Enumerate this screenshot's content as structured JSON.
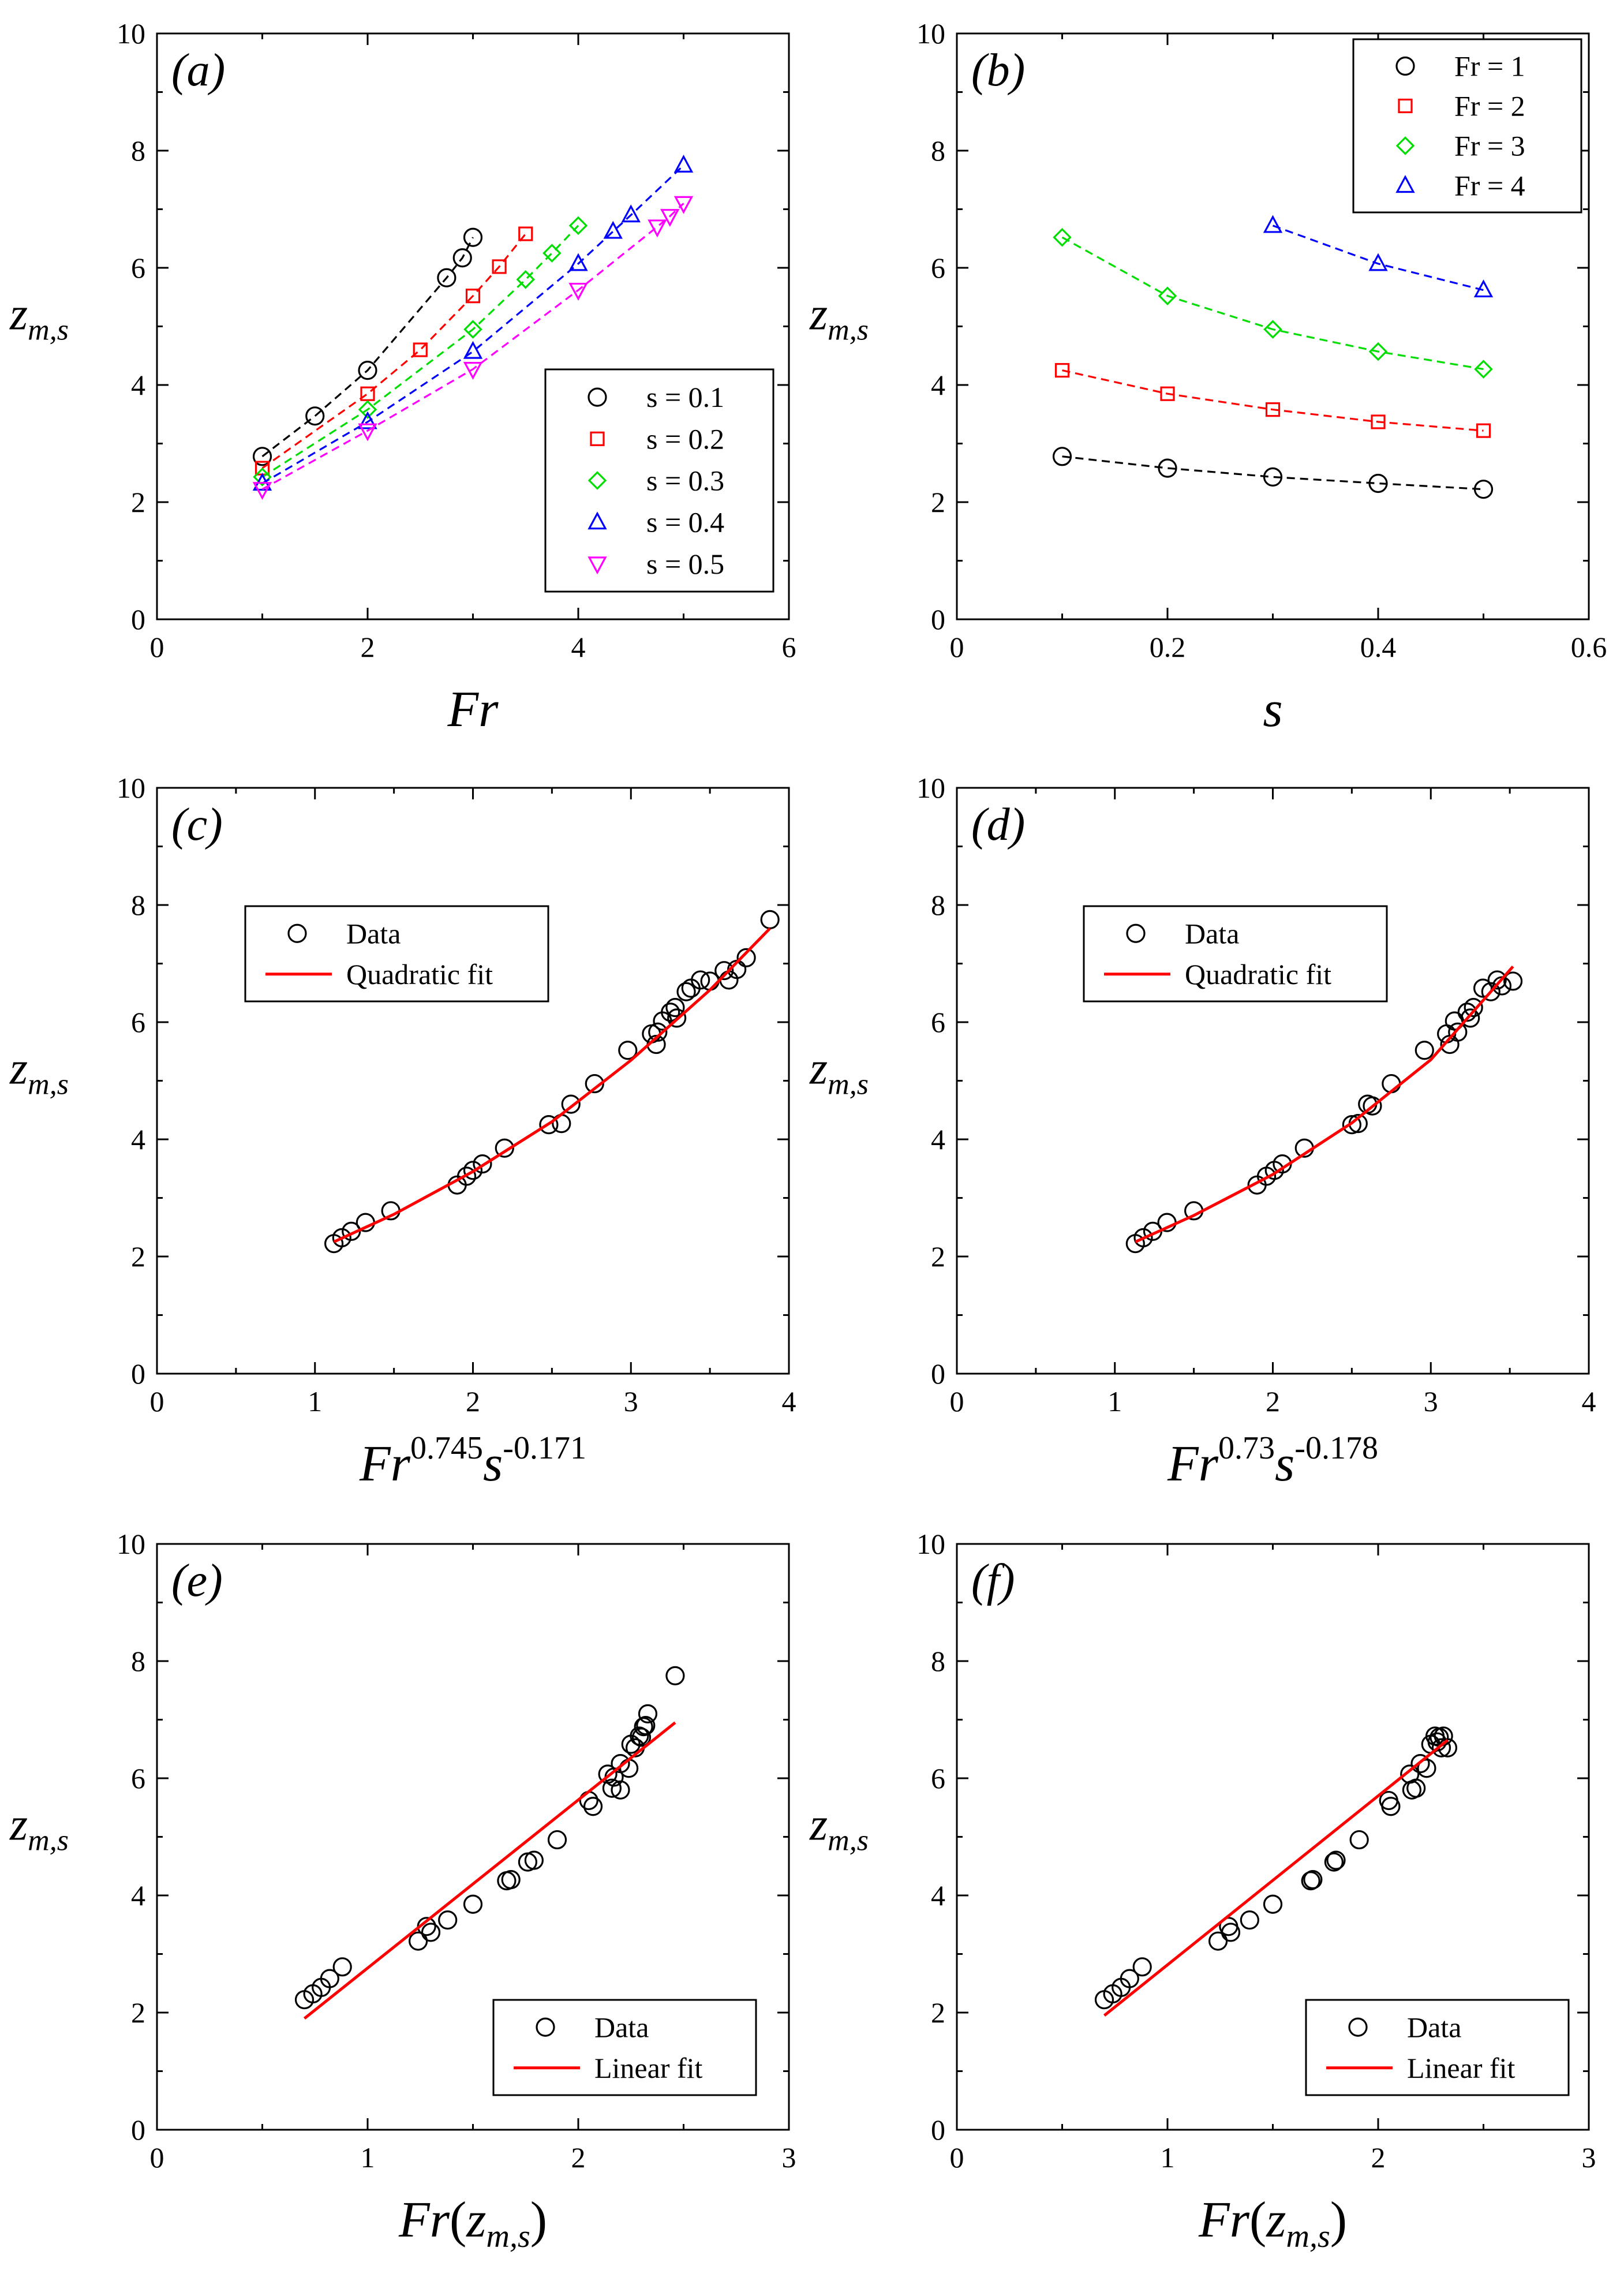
{
  "colors": {
    "black": "#000000",
    "red": "#ff0000",
    "green": "#00dd00",
    "blue": "#0000ff",
    "magenta": "#ff00ff"
  },
  "chart_data": [
    {
      "id": "a",
      "type": "scatter",
      "panel_label": "(a)",
      "xlabel": "Fr",
      "ylabel": {
        "main": "z",
        "sub": "m,s"
      },
      "xlim": [
        0,
        6
      ],
      "ylim": [
        0,
        10
      ],
      "xticks": [
        0,
        2,
        4,
        6
      ],
      "yticks": [
        0,
        2,
        4,
        6,
        8,
        10
      ],
      "legend_position": "bottom-right",
      "series": [
        {
          "name": "s = 0.1",
          "color": "#000000",
          "marker": "circle",
          "line": "dashed",
          "x": [
            1,
            1.5,
            2,
            2.75,
            2.9,
            3
          ],
          "y": [
            2.78,
            3.47,
            4.25,
            5.83,
            6.17,
            6.52
          ]
        },
        {
          "name": "s = 0.2",
          "color": "#ff0000",
          "marker": "square",
          "line": "dashed",
          "x": [
            1,
            2,
            2.5,
            3,
            3.25,
            3.5
          ],
          "y": [
            2.58,
            3.85,
            4.6,
            5.52,
            6.02,
            6.58
          ]
        },
        {
          "name": "s = 0.3",
          "color": "#00dd00",
          "marker": "diamond",
          "line": "dashed",
          "x": [
            1,
            2,
            3,
            3.5,
            3.75,
            4
          ],
          "y": [
            2.43,
            3.58,
            4.95,
            5.8,
            6.25,
            6.72
          ]
        },
        {
          "name": "s = 0.4",
          "color": "#0000ff",
          "marker": "triangle-up",
          "line": "dashed",
          "x": [
            1,
            2,
            3,
            4,
            4.33,
            4.5,
            5
          ],
          "y": [
            2.32,
            3.37,
            4.57,
            6.07,
            6.62,
            6.9,
            7.75
          ]
        },
        {
          "name": "s = 0.5",
          "color": "#ff00ff",
          "marker": "triangle-down",
          "line": "dashed",
          "x": [
            1,
            2,
            3,
            4,
            4.75,
            4.87,
            5
          ],
          "y": [
            2.22,
            3.22,
            4.27,
            5.62,
            6.7,
            6.88,
            7.1
          ]
        }
      ]
    },
    {
      "id": "b",
      "type": "scatter",
      "panel_label": "(b)",
      "xlabel": "s",
      "ylabel": {
        "main": "z",
        "sub": "m,s"
      },
      "xlim": [
        0,
        0.6
      ],
      "ylim": [
        0,
        10
      ],
      "xticks": [
        0,
        0.2,
        0.4,
        0.6
      ],
      "yticks": [
        0,
        2,
        4,
        6,
        8,
        10
      ],
      "legend_position": "top-right",
      "series": [
        {
          "name": "Fr = 1",
          "color": "#000000",
          "marker": "circle",
          "line": "dashed",
          "x": [
            0.1,
            0.2,
            0.3,
            0.4,
            0.5
          ],
          "y": [
            2.78,
            2.58,
            2.43,
            2.32,
            2.22
          ]
        },
        {
          "name": "Fr = 2",
          "color": "#ff0000",
          "marker": "square",
          "line": "dashed",
          "x": [
            0.1,
            0.2,
            0.3,
            0.4,
            0.5
          ],
          "y": [
            4.25,
            3.85,
            3.58,
            3.37,
            3.22
          ]
        },
        {
          "name": "Fr = 3",
          "color": "#00dd00",
          "marker": "diamond",
          "line": "dashed",
          "x": [
            0.1,
            0.2,
            0.3,
            0.4,
            0.5
          ],
          "y": [
            6.52,
            5.52,
            4.95,
            4.57,
            4.27
          ]
        },
        {
          "name": "Fr = 4",
          "color": "#0000ff",
          "marker": "triangle-up",
          "line": "dashed",
          "x": [
            0.3,
            0.4,
            0.5
          ],
          "y": [
            6.72,
            6.07,
            5.62
          ]
        }
      ]
    },
    {
      "id": "c",
      "type": "scatter",
      "panel_label": "(c)",
      "xlabel": "Fr",
      "xlabel_sup1": "0.745",
      "xlabel_mid": "s",
      "xlabel_sup2": "-0.171",
      "ylabel": {
        "main": "z",
        "sub": "m,s"
      },
      "xlim": [
        0,
        4
      ],
      "ylim": [
        0,
        10
      ],
      "xticks": [
        0,
        1,
        2,
        3,
        4
      ],
      "yticks": [
        0,
        2,
        4,
        6,
        8,
        10
      ],
      "legend_position": "top-left",
      "series": [
        {
          "name": "Data",
          "color": "#000000",
          "marker": "circle",
          "line": "none",
          "x": [
            1.12,
            1.17,
            1.23,
            1.32,
            1.48,
            1.9,
            1.96,
            2.0,
            2.06,
            2.2,
            2.48,
            2.56,
            2.62,
            2.77,
            2.98,
            3.13,
            3.16,
            3.17,
            3.2,
            3.25,
            3.28,
            3.29,
            3.35,
            3.38,
            3.44,
            3.5,
            3.59,
            3.62,
            3.67,
            3.73,
            3.88
          ],
          "y": [
            2.22,
            2.32,
            2.43,
            2.58,
            2.78,
            3.22,
            3.37,
            3.47,
            3.58,
            3.85,
            4.25,
            4.27,
            4.6,
            4.95,
            5.52,
            5.8,
            5.62,
            5.83,
            6.02,
            6.17,
            6.25,
            6.07,
            6.52,
            6.58,
            6.72,
            6.7,
            6.88,
            6.72,
            6.9,
            7.1,
            7.75
          ]
        },
        {
          "name": "Quadratic fit",
          "color": "#ff0000",
          "marker": "none",
          "line": "solid",
          "x": [
            1.12,
            1.5,
            2.0,
            2.5,
            3.0,
            3.5,
            3.88
          ],
          "y": [
            2.25,
            2.72,
            3.45,
            4.3,
            5.35,
            6.55,
            7.6
          ]
        }
      ]
    },
    {
      "id": "d",
      "type": "scatter",
      "panel_label": "(d)",
      "xlabel": "Fr",
      "xlabel_sup1": "0.73",
      "xlabel_mid": "s",
      "xlabel_sup2": "-0.178",
      "ylabel": {
        "main": "z",
        "sub": "m,s"
      },
      "xlim": [
        0,
        4
      ],
      "ylim": [
        0,
        10
      ],
      "xticks": [
        0,
        1,
        2,
        3,
        4
      ],
      "yticks": [
        0,
        2,
        4,
        6,
        8,
        10
      ],
      "legend_position": "top-left",
      "series": [
        {
          "name": "Data",
          "color": "#000000",
          "marker": "circle",
          "line": "none",
          "x": [
            1.13,
            1.18,
            1.24,
            1.33,
            1.5,
            1.9,
            1.96,
            2.01,
            2.06,
            2.2,
            2.5,
            2.54,
            2.6,
            2.63,
            2.75,
            2.96,
            3.1,
            3.12,
            3.15,
            3.17,
            3.23,
            3.25,
            3.27,
            3.33,
            3.38,
            3.42,
            3.45,
            3.52
          ],
          "y": [
            2.22,
            2.32,
            2.43,
            2.58,
            2.78,
            3.22,
            3.37,
            3.47,
            3.58,
            3.85,
            4.25,
            4.27,
            4.6,
            4.57,
            4.95,
            5.52,
            5.8,
            5.62,
            6.02,
            5.83,
            6.17,
            6.07,
            6.25,
            6.58,
            6.52,
            6.72,
            6.62,
            6.7
          ]
        },
        {
          "name": "Quadratic fit",
          "color": "#ff0000",
          "marker": "none",
          "line": "solid",
          "x": [
            1.13,
            1.5,
            2.0,
            2.5,
            3.0,
            3.52
          ],
          "y": [
            2.25,
            2.7,
            3.4,
            4.28,
            5.36,
            6.95
          ]
        }
      ]
    },
    {
      "id": "e",
      "type": "scatter",
      "panel_label": "(e)",
      "xlabel": "Fr",
      "xlabel_arg": "z",
      "xlabel_arg_sub": "m,s",
      "ylabel": {
        "main": "z",
        "sub": "m,s"
      },
      "xlim": [
        0,
        3
      ],
      "ylim": [
        0,
        10
      ],
      "xticks": [
        0,
        1,
        2,
        3
      ],
      "yticks": [
        0,
        2,
        4,
        6,
        8,
        10
      ],
      "legend_position": "bottom-right",
      "series": [
        {
          "name": "Data",
          "color": "#000000",
          "marker": "circle",
          "line": "none",
          "x": [
            0.7,
            0.74,
            0.78,
            0.82,
            0.88,
            1.24,
            1.28,
            1.3,
            1.38,
            1.5,
            1.66,
            1.68,
            1.76,
            1.79,
            1.9,
            2.05,
            2.07,
            2.14,
            2.16,
            2.17,
            2.2,
            2.2,
            2.24,
            2.25,
            2.27,
            2.29,
            2.3,
            2.31,
            2.32,
            2.33,
            2.46
          ],
          "y": [
            2.22,
            2.32,
            2.43,
            2.58,
            2.78,
            3.22,
            3.47,
            3.37,
            3.58,
            3.85,
            4.25,
            4.27,
            4.57,
            4.6,
            4.95,
            5.62,
            5.52,
            6.07,
            5.83,
            6.02,
            5.8,
            6.25,
            6.17,
            6.58,
            6.52,
            6.72,
            6.7,
            6.88,
            6.9,
            7.1,
            7.75
          ]
        },
        {
          "name": "Linear fit",
          "color": "#ff0000",
          "marker": "none",
          "line": "solid",
          "x": [
            0.7,
            2.46
          ],
          "y": [
            1.9,
            6.95
          ]
        }
      ]
    },
    {
      "id": "f",
      "type": "scatter",
      "panel_label": "(f)",
      "xlabel": "Fr",
      "xlabel_arg": "z",
      "xlabel_arg_sub": "m,s",
      "ylabel": {
        "main": "z",
        "sub": "m,s"
      },
      "xlim": [
        0,
        3
      ],
      "ylim": [
        0,
        10
      ],
      "xticks": [
        0,
        1,
        2,
        3
      ],
      "yticks": [
        0,
        2,
        4,
        6,
        8,
        10
      ],
      "legend_position": "bottom-right",
      "series": [
        {
          "name": "Data",
          "color": "#000000",
          "marker": "circle",
          "line": "none",
          "x": [
            0.7,
            0.74,
            0.78,
            0.82,
            0.88,
            1.24,
            1.29,
            1.3,
            1.39,
            1.5,
            1.68,
            1.69,
            1.79,
            1.8,
            1.91,
            2.05,
            2.06,
            2.15,
            2.16,
            2.18,
            2.2,
            2.23,
            2.25,
            2.27,
            2.28,
            2.29,
            2.3,
            2.31,
            2.33
          ],
          "y": [
            2.22,
            2.32,
            2.43,
            2.58,
            2.78,
            3.22,
            3.47,
            3.37,
            3.58,
            3.85,
            4.25,
            4.27,
            4.57,
            4.6,
            4.95,
            5.62,
            5.52,
            6.07,
            5.8,
            5.83,
            6.25,
            6.17,
            6.58,
            6.72,
            6.62,
            6.7,
            6.52,
            6.72,
            6.52
          ]
        },
        {
          "name": "Linear fit",
          "color": "#ff0000",
          "marker": "none",
          "line": "solid",
          "x": [
            0.7,
            2.33
          ],
          "y": [
            1.95,
            6.65
          ]
        }
      ]
    }
  ]
}
